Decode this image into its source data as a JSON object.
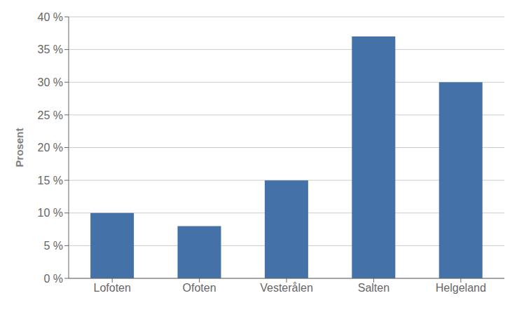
{
  "chart_data": {
    "type": "bar",
    "categories": [
      "Lofoten",
      "Ofoten",
      "Vesterålen",
      "Salten",
      "Helgeland"
    ],
    "values": [
      0.1,
      0.08,
      0.15,
      0.37,
      0.3
    ],
    "color": "#4472a8",
    "ylabel": "Prosent",
    "ylim": [
      0,
      0.4
    ],
    "yticks": [
      {
        "value": 0.0,
        "label": "0 %"
      },
      {
        "value": 0.05,
        "label": "5 %"
      },
      {
        "value": 0.1,
        "label": "10 %"
      },
      {
        "value": 0.15,
        "label": "15 %"
      },
      {
        "value": 0.2,
        "label": "20 %"
      },
      {
        "value": 0.25,
        "label": "25 %"
      },
      {
        "value": 0.3,
        "label": "30 %"
      },
      {
        "value": 0.35,
        "label": "35 %"
      },
      {
        "value": 0.4,
        "label": "40 %"
      }
    ],
    "grid": true
  }
}
